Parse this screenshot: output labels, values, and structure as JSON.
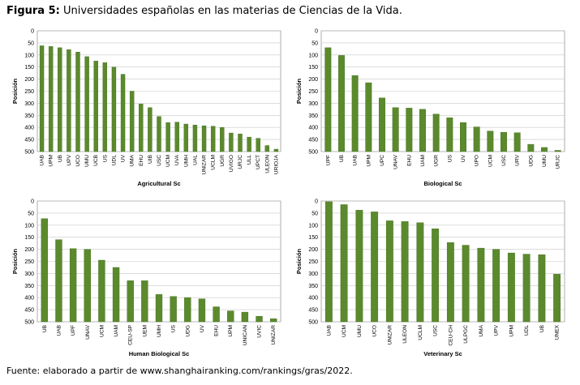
{
  "figure": {
    "label": "Figura 5:",
    "title": "Universidades españolas en las materias de Ciencias de la Vida.",
    "source": "Fuente: elaborado a partir de www.shanghairanking.com/rankings/gras/2022."
  },
  "colors": {
    "bar": "#5b8a2d",
    "bar_edge": "#3f6a1a",
    "grid": "#c8c8c8",
    "plot_border": "#999999"
  },
  "chart_data": [
    {
      "type": "bar",
      "title": "",
      "xlabel": "Agricultural Sc",
      "ylabel": "Posición",
      "ylim": [
        0,
        500
      ],
      "y_inverted": true,
      "yticks": [
        0,
        50,
        100,
        150,
        200,
        250,
        300,
        350,
        400,
        450,
        500
      ],
      "categories": [
        "UAB",
        "UPM",
        "UB",
        "UPV",
        "UCO",
        "UMU",
        "UCB",
        "US",
        "UDL",
        "UV",
        "UMA",
        "EHU",
        "UIB",
        "USC",
        "UCM",
        "UVA",
        "UMH",
        "UAL",
        "UNIZAR",
        "UCLM",
        "UGR",
        "UVIGO",
        "URJC",
        "ULL",
        "UPCT",
        "ULEON",
        "URIOJA"
      ],
      "values": [
        62,
        65,
        70,
        78,
        88,
        107,
        125,
        132,
        150,
        180,
        250,
        303,
        318,
        355,
        380,
        378,
        386,
        390,
        393,
        395,
        400,
        423,
        427,
        440,
        445,
        475,
        490
      ]
    },
    {
      "type": "bar",
      "title": "",
      "xlabel": "Biological Sc",
      "ylabel": "Posición",
      "ylim": [
        0,
        500
      ],
      "y_inverted": true,
      "yticks": [
        0,
        50,
        100,
        150,
        200,
        250,
        300,
        350,
        400,
        450,
        500
      ],
      "categories": [
        "UPF",
        "UB",
        "UAB",
        "UPM",
        "UPC",
        "UNAV",
        "EHU",
        "UAM",
        "UGR",
        "US",
        "UV",
        "UPO",
        "UCM",
        "USC",
        "URV",
        "UDG",
        "UMU",
        "URJC"
      ],
      "values": [
        70,
        102,
        185,
        215,
        278,
        318,
        320,
        325,
        345,
        360,
        380,
        398,
        415,
        420,
        422,
        470,
        483,
        495
      ]
    },
    {
      "type": "bar",
      "title": "",
      "xlabel": "Human Biological Sc",
      "ylabel": "Posición",
      "ylim": [
        0,
        500
      ],
      "y_inverted": true,
      "yticks": [
        0,
        50,
        100,
        150,
        200,
        250,
        300,
        350,
        400,
        450,
        500
      ],
      "categories": [
        "UB",
        "UAB",
        "UPF",
        "UNAV",
        "UCM",
        "UAM",
        "CEU-SP",
        "UEM",
        "UMH",
        "US",
        "UDG",
        "UV",
        "EHU",
        "UPM",
        "UNICAN",
        "UVIC",
        "UNIZAR"
      ],
      "values": [
        73,
        160,
        197,
        200,
        245,
        275,
        330,
        330,
        387,
        395,
        400,
        405,
        438,
        455,
        460,
        477,
        487
      ]
    },
    {
      "type": "bar",
      "title": "",
      "xlabel": "Veterinary Sc",
      "ylabel": "Posición",
      "ylim": [
        0,
        500
      ],
      "y_inverted": true,
      "yticks": [
        0,
        50,
        100,
        150,
        200,
        250,
        300,
        350,
        400,
        450,
        500
      ],
      "categories": [
        "UAB",
        "UCM",
        "UMU",
        "UCO",
        "UNIZAR",
        "ULEON",
        "UCLM",
        "USC",
        "CEU-CH",
        "ULPGC",
        "UMA",
        "UPV",
        "UPM",
        "UDL",
        "UB",
        "UNEX"
      ],
      "values": [
        3,
        15,
        38,
        45,
        82,
        85,
        90,
        115,
        172,
        183,
        195,
        200,
        215,
        220,
        222,
        303
      ]
    }
  ]
}
